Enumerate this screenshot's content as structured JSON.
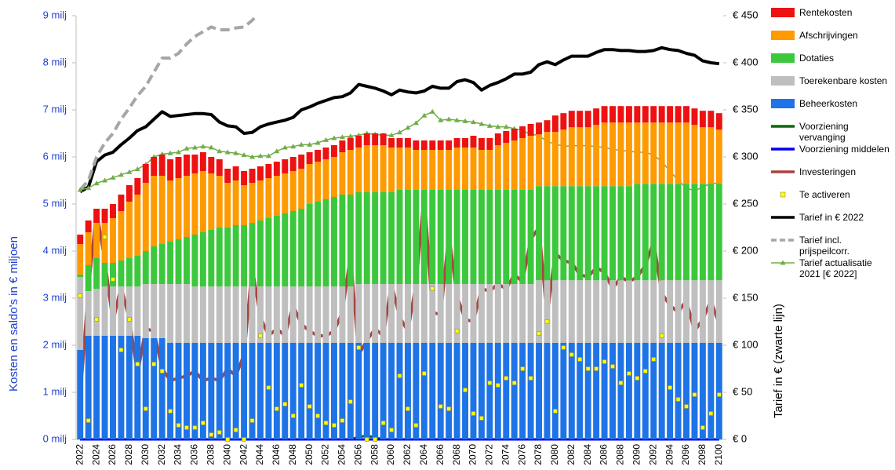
{
  "chart_data": {
    "type": "bar",
    "stacked": true,
    "y_label": "Kosten en saldo's  in € miljoen",
    "y2_label": "Tarief  in €  (zwarte lijn)",
    "legend": "right",
    "ylim": [
      0,
      9
    ],
    "yticks": [
      {
        "value": 0,
        "label": "0 milj"
      },
      {
        "value": 1,
        "label": "1 milj"
      },
      {
        "value": 2,
        "label": "2 milj"
      },
      {
        "value": 3,
        "label": "3 milj"
      },
      {
        "value": 4,
        "label": "4 milj"
      },
      {
        "value": 5,
        "label": "5 milj"
      },
      {
        "value": 6,
        "label": "6 milj"
      },
      {
        "value": 7,
        "label": "7 milj"
      },
      {
        "value": 8,
        "label": "8 milj"
      },
      {
        "value": 9,
        "label": "9 milj"
      }
    ],
    "y2lim": [
      0,
      450
    ],
    "y2ticks": [
      {
        "value": 0,
        "label": "€ 0"
      },
      {
        "value": 50,
        "label": "€ 50"
      },
      {
        "value": 100,
        "label": "€ 100"
      },
      {
        "value": 150,
        "label": "€ 150"
      },
      {
        "value": 200,
        "label": "€ 200"
      },
      {
        "value": 250,
        "label": "€ 250"
      },
      {
        "value": 300,
        "label": "€ 300"
      },
      {
        "value": 350,
        "label": "€ 350"
      },
      {
        "value": 400,
        "label": "€ 400"
      },
      {
        "value": 450,
        "label": "€ 450"
      }
    ],
    "categories": [
      "2022",
      null,
      "2024",
      null,
      "2026",
      null,
      "2028",
      null,
      "2030",
      null,
      "2032",
      null,
      "2034",
      null,
      "2036",
      null,
      "2038",
      null,
      "2040",
      null,
      "2042",
      null,
      "2044",
      null,
      "2046",
      null,
      "2048",
      null,
      "2050",
      null,
      "2052",
      null,
      "2054",
      null,
      "2056",
      null,
      "2058",
      null,
      "2060",
      null,
      "2062",
      null,
      "2064",
      null,
      "2066",
      null,
      "2068",
      null,
      "2070",
      null,
      "2072",
      null,
      "2074",
      null,
      "2076",
      null,
      "2078",
      null,
      "2080",
      null,
      "2082",
      null,
      "2084",
      null,
      "2086",
      null,
      "2088",
      null,
      "2090",
      null,
      "2092",
      null,
      "2094",
      null,
      "2096",
      null,
      "2098",
      null,
      "2100"
    ],
    "series": [
      {
        "name": "Beheerkosten",
        "type": "bar",
        "color": "#1e73e6",
        "values": [
          1.9,
          2.2,
          2.2,
          2.2,
          2.2,
          2.2,
          2.2,
          2.2,
          2.15,
          2.15,
          2.15,
          2.05,
          2.05,
          2.05,
          2.05,
          2.05,
          2.05,
          2.05,
          2.05,
          2.05,
          2.05,
          2.05,
          2.05,
          2.05,
          2.05,
          2.05,
          2.05,
          2.05,
          2.05,
          2.05,
          2.05,
          2.05,
          2.05,
          2.05,
          2.05,
          2.05,
          2.05,
          2.05,
          2.05,
          2.05,
          2.05,
          2.05,
          2.05,
          2.05,
          2.05,
          2.05,
          2.05,
          2.05,
          2.05,
          2.05,
          2.05,
          2.05,
          2.05,
          2.05,
          2.05,
          2.05,
          2.05,
          2.05,
          2.05,
          2.05,
          2.05,
          2.05,
          2.05,
          2.05,
          2.05,
          2.05,
          2.05,
          2.05,
          2.05,
          2.05,
          2.05,
          2.05,
          2.05,
          2.05,
          2.05,
          2.05,
          2.05,
          2.05,
          2.05
        ]
      },
      {
        "name": "Toerekenbare kosten",
        "type": "bar",
        "color": "#bfbfbf",
        "values": [
          1.55,
          0.95,
          1.0,
          1.05,
          1.05,
          1.05,
          1.05,
          1.05,
          1.15,
          1.15,
          1.15,
          1.25,
          1.25,
          1.25,
          1.2,
          1.2,
          1.2,
          1.2,
          1.2,
          1.2,
          1.2,
          1.2,
          1.2,
          1.2,
          1.2,
          1.2,
          1.2,
          1.2,
          1.2,
          1.2,
          1.2,
          1.2,
          1.2,
          1.2,
          1.25,
          1.25,
          1.25,
          1.25,
          1.25,
          1.25,
          1.25,
          1.25,
          1.25,
          1.25,
          1.25,
          1.25,
          1.25,
          1.25,
          1.25,
          1.25,
          1.25,
          1.25,
          1.25,
          1.25,
          1.25,
          1.25,
          1.33,
          1.33,
          1.33,
          1.33,
          1.33,
          1.33,
          1.33,
          1.33,
          1.33,
          1.33,
          1.33,
          1.33,
          1.33,
          1.33,
          1.33,
          1.33,
          1.33,
          1.33,
          1.33,
          1.33,
          1.33,
          1.33,
          1.33
        ]
      },
      {
        "name": "Dotaties",
        "type": "bar",
        "color": "#3cc83c",
        "values": [
          0.05,
          0.55,
          0.65,
          0.5,
          0.5,
          0.55,
          0.6,
          0.65,
          0.7,
          0.8,
          0.85,
          0.9,
          0.95,
          1.0,
          1.1,
          1.15,
          1.2,
          1.25,
          1.25,
          1.3,
          1.3,
          1.35,
          1.4,
          1.45,
          1.5,
          1.55,
          1.6,
          1.65,
          1.75,
          1.8,
          1.85,
          1.9,
          1.95,
          1.95,
          1.95,
          1.95,
          1.95,
          1.95,
          1.95,
          2.0,
          2.0,
          2.0,
          2.0,
          2.0,
          2.0,
          2.0,
          2.0,
          2.0,
          2.0,
          2.0,
          2.0,
          2.0,
          2.0,
          2.0,
          2.0,
          2.0,
          2.0,
          2.0,
          2.0,
          2.0,
          2.0,
          2.0,
          2.0,
          2.0,
          2.0,
          2.0,
          2.0,
          2.0,
          2.05,
          2.05,
          2.05,
          2.05,
          2.05,
          2.05,
          2.05,
          2.05,
          2.05,
          2.05,
          2.05
        ]
      },
      {
        "name": "Afschrijvingen",
        "type": "bar",
        "color": "#ff9a00",
        "values": [
          0.65,
          0.7,
          0.75,
          0.85,
          0.95,
          1.05,
          1.2,
          1.3,
          1.45,
          1.5,
          1.45,
          1.3,
          1.3,
          1.3,
          1.3,
          1.3,
          1.2,
          1.1,
          0.95,
          0.95,
          0.85,
          0.85,
          0.85,
          0.85,
          0.85,
          0.85,
          0.85,
          0.85,
          0.85,
          0.85,
          0.85,
          0.85,
          0.9,
          0.95,
          0.95,
          1.0,
          1.0,
          1.0,
          0.95,
          0.9,
          0.9,
          0.85,
          0.85,
          0.85,
          0.85,
          0.85,
          0.9,
          0.9,
          0.9,
          0.85,
          0.85,
          0.95,
          1.0,
          1.05,
          1.1,
          1.15,
          1.1,
          1.15,
          1.15,
          1.2,
          1.25,
          1.25,
          1.25,
          1.3,
          1.35,
          1.35,
          1.35,
          1.35,
          1.3,
          1.3,
          1.3,
          1.3,
          1.3,
          1.3,
          1.3,
          1.25,
          1.2,
          1.2,
          1.15
        ]
      },
      {
        "name": "Rentekosten",
        "type": "bar",
        "color": "#ee1111",
        "values": [
          0.2,
          0.25,
          0.3,
          0.3,
          0.3,
          0.35,
          0.35,
          0.35,
          0.4,
          0.4,
          0.45,
          0.45,
          0.45,
          0.45,
          0.4,
          0.4,
          0.35,
          0.35,
          0.3,
          0.3,
          0.3,
          0.3,
          0.3,
          0.3,
          0.3,
          0.3,
          0.3,
          0.3,
          0.25,
          0.25,
          0.25,
          0.25,
          0.25,
          0.25,
          0.25,
          0.25,
          0.25,
          0.25,
          0.2,
          0.2,
          0.2,
          0.2,
          0.2,
          0.2,
          0.2,
          0.2,
          0.2,
          0.2,
          0.25,
          0.25,
          0.25,
          0.25,
          0.25,
          0.25,
          0.25,
          0.25,
          0.25,
          0.25,
          0.35,
          0.35,
          0.35,
          0.35,
          0.35,
          0.35,
          0.35,
          0.35,
          0.35,
          0.35,
          0.35,
          0.35,
          0.35,
          0.35,
          0.35,
          0.35,
          0.35,
          0.35,
          0.35,
          0.35,
          0.35
        ]
      },
      {
        "name": "Voorziening vervanging",
        "type": "line",
        "color": "#0a6a0a",
        "values": [
          0,
          0,
          0,
          0,
          0,
          0,
          0,
          0,
          0,
          0,
          0,
          0,
          0,
          0,
          0,
          0,
          0,
          0,
          0,
          0,
          0,
          0,
          0,
          0,
          0,
          0,
          0,
          0,
          0,
          0,
          0,
          0,
          0,
          0,
          0.05,
          0.08,
          0.04,
          0,
          0,
          0,
          0,
          0,
          0,
          0,
          0,
          0,
          0,
          0,
          0,
          0,
          0,
          0,
          0,
          0,
          0,
          0,
          0,
          0,
          0,
          0,
          0,
          0,
          0,
          0,
          0,
          0,
          0,
          0,
          0,
          0,
          0,
          0,
          0,
          0,
          0,
          0,
          0,
          0,
          0
        ]
      },
      {
        "name": "Voorziening middelen",
        "type": "line",
        "color": "#0000ee",
        "values": [
          0,
          0,
          0,
          0,
          0,
          0,
          0,
          0,
          0,
          0,
          0,
          0,
          0,
          0,
          0,
          0,
          0,
          0,
          0,
          0,
          0,
          0,
          0,
          0,
          0,
          0,
          0,
          0,
          0,
          0,
          0,
          0,
          0,
          0,
          0,
          0,
          0,
          0,
          0,
          0,
          0,
          0,
          0,
          0,
          0,
          0,
          0,
          0,
          0,
          0,
          0,
          0,
          0,
          0,
          0,
          0,
          0,
          0,
          0,
          0,
          0,
          0,
          0,
          0,
          0,
          0,
          0,
          0,
          0,
          0,
          0,
          0,
          0,
          0,
          0,
          0,
          0,
          0,
          0
        ]
      },
      {
        "name": "Investeringen",
        "type": "line",
        "color": "#a8443e",
        "values": [
          0.9,
          3.2,
          4.85,
          3.8,
          2.5,
          3.25,
          2.55,
          1.4,
          2.35,
          2.3,
          1.5,
          1.25,
          1.3,
          1.35,
          1.45,
          1.25,
          1.3,
          1.25,
          1.5,
          1.35,
          1.8,
          3.65,
          2.6,
          2.2,
          2.35,
          2.2,
          2.85,
          2.45,
          2.3,
          2.2,
          2.2,
          2.3,
          2.7,
          3.9,
          1.8,
          2.1,
          2.35,
          2.2,
          3.3,
          2.6,
          2.3,
          3.3,
          5.2,
          2.7,
          2.65,
          4.35,
          3.05,
          2.55,
          2.5,
          3.2,
          3.15,
          3.3,
          3.2,
          3.5,
          3.35,
          4.25,
          4.5,
          2.6,
          3.95,
          3.8,
          3.75,
          3.5,
          3.45,
          3.65,
          3.55,
          3.2,
          3.45,
          3.35,
          3.45,
          3.7,
          4.2,
          3.1,
          2.85,
          2.7,
          2.95,
          2.3,
          2.55,
          2.95,
          2.45
        ]
      },
      {
        "name": "Te activeren",
        "type": "scatter",
        "color": "#ffff00",
        "values": [
          3.05,
          0.4,
          2.55,
          4.3,
          3.4,
          1.9,
          2.55,
          1.6,
          0.65,
          1.6,
          1.45,
          0.6,
          0.3,
          0.25,
          0.25,
          0.35,
          0.1,
          0.15,
          0.0,
          0.2,
          0.0,
          0.4,
          2.2,
          1.1,
          0.65,
          0.75,
          0.5,
          1.15,
          0.7,
          0.5,
          0.35,
          0.3,
          0.4,
          0.8,
          1.95,
          0.0,
          0.0,
          0.35,
          0.2,
          1.35,
          0.65,
          0.3,
          1.4,
          3.2,
          0.7,
          0.65,
          2.3,
          1.05,
          0.55,
          0.45,
          1.2,
          1.15,
          1.3,
          1.2,
          1.5,
          1.3,
          2.25,
          2.5,
          0.6,
          1.95,
          1.8,
          1.7,
          1.5,
          1.5,
          1.65,
          1.55,
          1.2,
          1.4,
          1.3,
          1.45,
          1.7,
          2.2,
          1.1,
          0.85,
          0.7,
          0.95,
          0.25,
          0.55,
          0.95
        ]
      },
      {
        "name": "Tarief in € 2022",
        "type": "line",
        "axis": "y2",
        "color": "#000000",
        "values": [
          263,
          268,
          295,
          302,
          305,
          313,
          320,
          328,
          332,
          340,
          348,
          343,
          344,
          345,
          346,
          346,
          345,
          337,
          333,
          332,
          325,
          326,
          332,
          335,
          337,
          339,
          342,
          350,
          353,
          357,
          360,
          363,
          364,
          368,
          377,
          375,
          373,
          370,
          366,
          371,
          369,
          368,
          370,
          375,
          373,
          373,
          380,
          382,
          379,
          371,
          376,
          379,
          383,
          388,
          388,
          390,
          398,
          401,
          398,
          403,
          407,
          407,
          407,
          411,
          414,
          414,
          413,
          413,
          412,
          412,
          413,
          416,
          414,
          413,
          410,
          408,
          402,
          400,
          399
        ]
      },
      {
        "name": "Tarief incl. prijspeilcorr.",
        "type": "line",
        "axis": "y2",
        "dashed": true,
        "color": "#a6a6a6",
        "values": [
          265,
          275,
          300,
          315,
          325,
          340,
          352,
          365,
          375,
          390,
          405,
          405,
          410,
          420,
          428,
          433,
          438,
          435,
          435,
          437,
          438,
          445,
          455,
          null,
          null,
          null,
          null,
          null,
          null,
          null,
          null,
          null,
          null,
          null,
          null,
          null,
          null,
          null,
          null,
          null,
          null,
          null,
          null,
          null,
          null,
          null,
          null,
          null,
          null,
          null,
          null,
          null,
          null,
          null,
          null,
          null,
          null,
          null,
          null,
          null,
          null,
          null,
          null,
          null,
          null,
          null,
          null,
          null,
          null,
          null,
          null,
          null,
          null,
          null,
          null,
          null,
          null,
          null,
          null
        ]
      },
      {
        "name": "Tarief actualisatie 2021 [€ 2022]",
        "type": "line",
        "axis": "y2",
        "marker": "triangle",
        "color": "#70ad47",
        "values": [
          265,
          267,
          272,
          275,
          278,
          281,
          284,
          287,
          292,
          300,
          303,
          304,
          305,
          309,
          310,
          311,
          310,
          306,
          305,
          304,
          302,
          300,
          301,
          301,
          306,
          310,
          311,
          313,
          313,
          315,
          318,
          320,
          321,
          322,
          323,
          325,
          324,
          323,
          323,
          326,
          331,
          336,
          344,
          348,
          339,
          340,
          339,
          338,
          337,
          335,
          333,
          332,
          332,
          330,
          328,
          324,
          323,
          316,
          314,
          311,
          312,
          312,
          312,
          311,
          310,
          308,
          307,
          306,
          305,
          305,
          302,
          295,
          285,
          275,
          267,
          264,
          268,
          272,
          272
        ]
      }
    ]
  }
}
